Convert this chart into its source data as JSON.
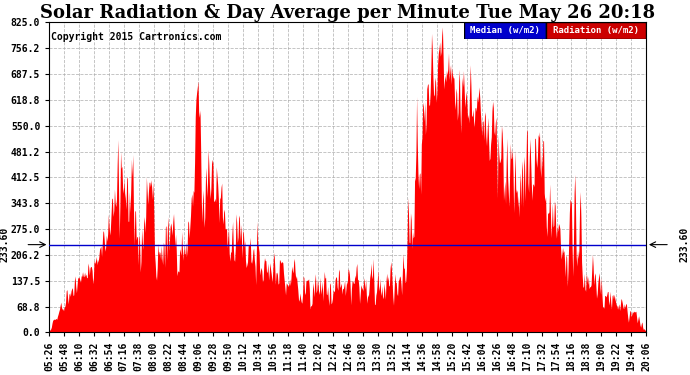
{
  "title": "Solar Radiation & Day Average per Minute Tue May 26 20:18",
  "copyright": "Copyright 2015 Cartronics.com",
  "median_value": 233.6,
  "ymin": 0.0,
  "ymax": 825.0,
  "yticks": [
    0.0,
    68.8,
    137.5,
    206.2,
    275.0,
    343.8,
    412.5,
    481.2,
    550.0,
    618.8,
    687.5,
    756.2,
    825.0
  ],
  "legend_median_color": "#0000cc",
  "legend_radiation_color": "#cc0000",
  "radiation_fill_color": "#ff0000",
  "median_line_color": "#0000cc",
  "background_color": "#ffffff",
  "grid_color": "#aaaaaa",
  "title_fontsize": 13,
  "tick_fontsize": 7,
  "copyright_fontsize": 7,
  "xtick_labels": [
    "05:26",
    "05:48",
    "06:10",
    "06:32",
    "06:54",
    "07:16",
    "07:38",
    "08:00",
    "08:22",
    "08:44",
    "09:06",
    "09:28",
    "09:50",
    "10:12",
    "10:34",
    "10:56",
    "11:18",
    "11:40",
    "12:02",
    "12:24",
    "12:46",
    "13:08",
    "13:30",
    "13:52",
    "14:14",
    "14:36",
    "14:58",
    "15:20",
    "15:42",
    "16:04",
    "16:26",
    "16:48",
    "17:10",
    "17:32",
    "17:54",
    "18:16",
    "18:38",
    "19:00",
    "19:22",
    "19:44",
    "20:06"
  ]
}
